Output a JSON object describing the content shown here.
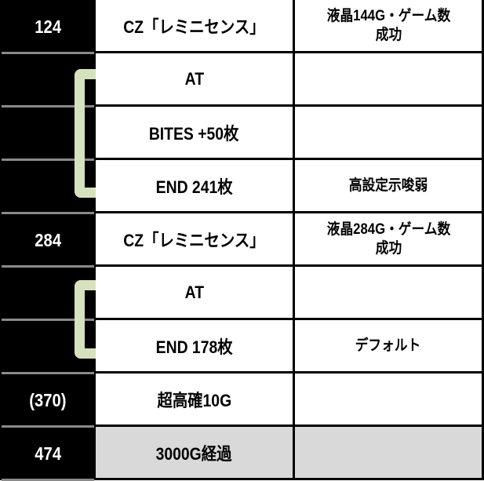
{
  "rows": [
    {
      "game": "124",
      "event": "CZ「レミニセンス」",
      "note": "液晶144G・ゲーム数\n成功"
    },
    {
      "game": "",
      "event": "AT",
      "note": ""
    },
    {
      "game": "",
      "event": "BITES +50枚",
      "note": ""
    },
    {
      "game": "",
      "event": "END 241枚",
      "note": "高設定示唆弱"
    },
    {
      "game": "284",
      "event": "CZ「レミニセンス」",
      "note": "液晶284G・ゲーム数\n成功"
    },
    {
      "game": "",
      "event": "AT",
      "note": ""
    },
    {
      "game": "",
      "event": "END 178枚",
      "note": "デフォルト"
    },
    {
      "game": "(370)",
      "event": "超高確10G",
      "note": ""
    },
    {
      "game": "474",
      "event": "3000G経過",
      "note": ""
    }
  ],
  "colors": {
    "bracket": "#d6e2bd",
    "left_bg": "#000000",
    "highlight_row": "#d9d9d9"
  }
}
